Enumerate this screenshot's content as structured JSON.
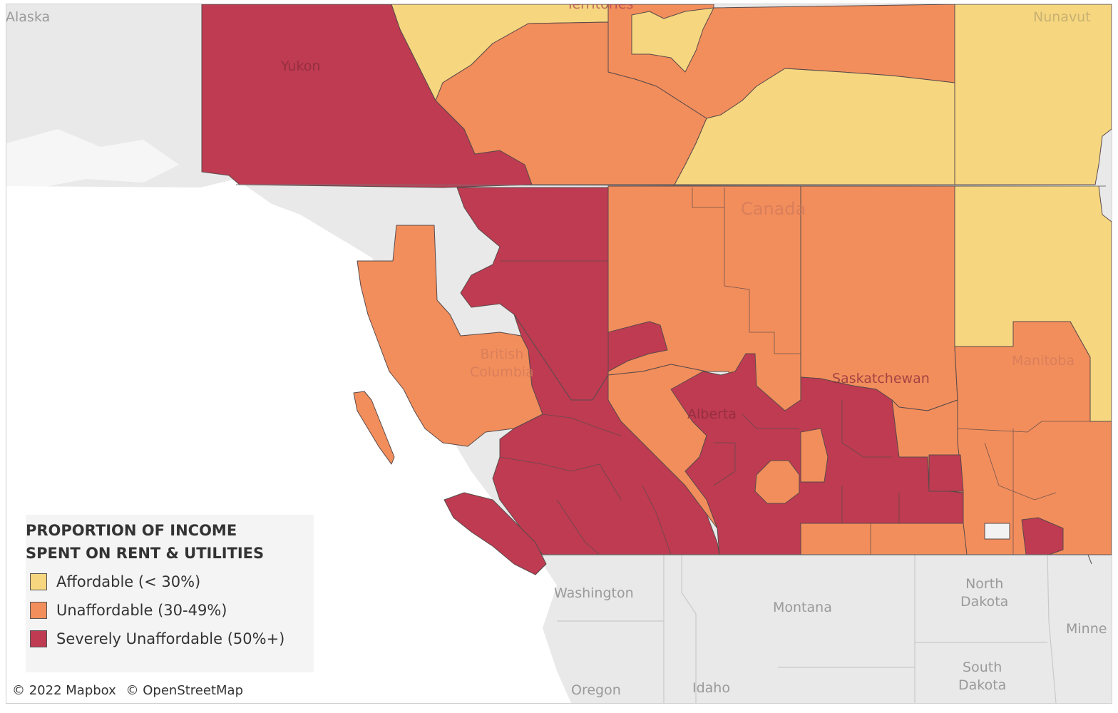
{
  "legend": {
    "title_line1": "PROPORTION OF INCOME",
    "title_line2": "SPENT ON RENT & UTILITIES",
    "items": [
      {
        "label": "Affordable (< 30%)",
        "color": "#f6d67f"
      },
      {
        "label": "Unaffordable (30-49%)",
        "color": "#f28e5c"
      },
      {
        "label": "Severely Unaffordable (50%+)",
        "color": "#be3b52"
      }
    ]
  },
  "place_labels": {
    "alaska": "Alaska",
    "territories": "Territories",
    "nunavut": "Nunavut",
    "yukon": "Yukon",
    "canada": "Canada",
    "british_columbia_1": "British",
    "british_columbia_2": "Columbia",
    "alberta": "Alberta",
    "saskatchewan": "Saskatchewan",
    "manitoba": "Manitoba",
    "washington": "Washington",
    "montana": "Montana",
    "north_dakota_1": "North",
    "north_dakota_2": "Dakota",
    "minnesota": "Minne",
    "oregon": "Oregon",
    "idaho": "Idaho",
    "south_dakota_1": "South",
    "south_dakota_2": "Dakota"
  },
  "attribution": {
    "mapbox": "© 2022 Mapbox",
    "osm": "© OpenStreetMap"
  },
  "colors": {
    "land": "#e9e9e9",
    "water": "#ffffff",
    "affordable": "#f6d67f",
    "unaffordable": "#f28e5c",
    "severe": "#be3b52",
    "no_data": "#f2f2f2"
  }
}
